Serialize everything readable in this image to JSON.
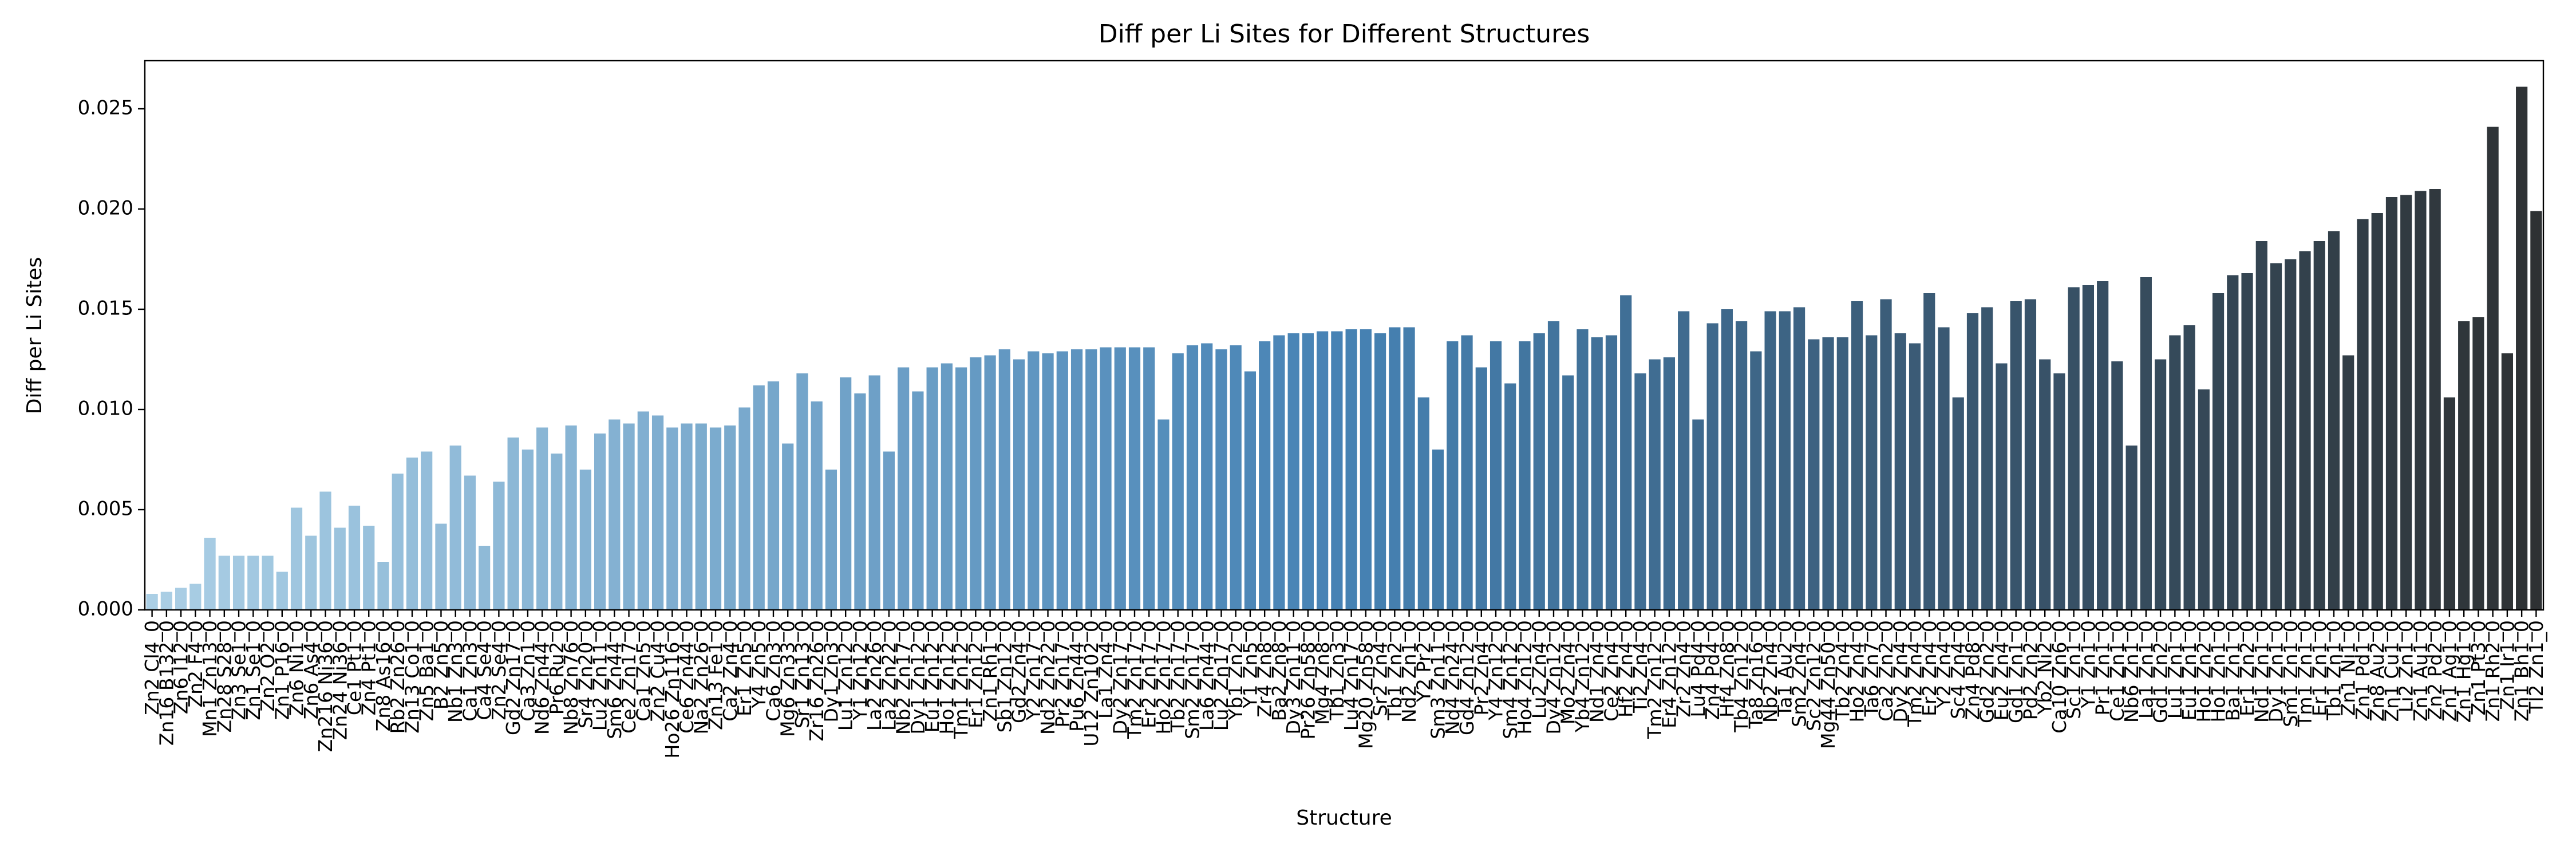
{
  "chart_data": {
    "type": "bar",
    "title": "Diff per Li Sites for Different Structures",
    "xlabel": "Structure",
    "ylabel": "Diff per Li Sites",
    "palette": [
      "#abcfe5",
      "#4682b4",
      "#2e3133"
    ],
    "ylim": [
      0,
      0.0274
    ],
    "yticks": [
      {
        "value": 0,
        "label": "0.000"
      },
      {
        "value": 0.005,
        "label": "0.005"
      },
      {
        "value": 0.01,
        "label": "0.010"
      },
      {
        "value": 0.015,
        "label": "0.015"
      },
      {
        "value": 0.02,
        "label": "0.020"
      },
      {
        "value": 0.025,
        "label": "0.025"
      }
    ],
    "categories": [
      "Zn2 Cl4_0",
      "Zn16 B132_0",
      "Zn6 I12_0",
      "Zn2 F4_0",
      "Mn1 Zn13_0",
      "Zn28 S28_0",
      "Zn3 Se1_0",
      "Zn1 Se1_0",
      "Zn2 O2_0",
      "Zn1 P16_0",
      "Zn6 Ni1_0",
      "Zn6 As4_0",
      "Zn216 Ni36_0",
      "Zn24 Ni36_0",
      "Ce1 Pt1_0",
      "Zn4 Pt1_0",
      "Zn8 As16_0",
      "Rb2 Zn26_0",
      "Zn13 Co1_0",
      "Zn5 Ba1_0",
      "B2 Zn5_0",
      "Nb1 Zn3_0",
      "Ca1 Zn3_0",
      "Ca4 Se4_0",
      "Zn2 Se4_0",
      "Gd2 Zn17_0",
      "Ca3 Zn1_0",
      "Nd6 Zn44_0",
      "Pr6 Ru2_0",
      "Nb8 Zn76_0",
      "Sr4 Zn20_0",
      "Lu2 Zn11_0",
      "Sm6 Zn44_0",
      "Ce2 Zn17_0",
      "Ca1 Zn5_0",
      "Zn2 Cu4_0",
      "Ho26 Zn116_0",
      "Ce6 Zn44_0",
      "Na2 Zn26_0",
      "Zn13 Fe1_0",
      "Ca2 Zn4_0",
      "Er1 Zn5_0",
      "Y4 Zn5_0",
      "Ca6 Zn3_0",
      "Mg6 Zn33_0",
      "Sr1 Zn13_0",
      "Zr16 Zn26_0",
      "Dy1 Zn3_0",
      "Lu1 Zn12_0",
      "Y1 Zn12_0",
      "La2 Zn26_0",
      "La2 Zn22_0",
      "Nb2 Zn17_0",
      "Dy1 Zn12_0",
      "Eu1 Zn12_0",
      "Ho1 Zn12_0",
      "Tm1 Zn12_0",
      "Er1 Zn12_0",
      "Zn1 Rh1_0",
      "Sb1 Zn12_0",
      "Gd2 Zn4_0",
      "Y2 Zn17_0",
      "Nd2 Zn22_0",
      "Pr2 Zn17_0",
      "Pu6 Zn44_0",
      "U12 Zn102_0",
      "La1 Zn4_0",
      "Dy2 Zn17_0",
      "Tm2 Zn17_0",
      "Er2 Zn17_0",
      "Ho2 Zn17_0",
      "Tb2 Zn17_0",
      "Sm2 Zn17_0",
      "La6 Zn44_0",
      "Lu2 Zn17_0",
      "Yb1 Zn2_0",
      "Y1 Zn5_0",
      "Zr4 Zn8_0",
      "Ba2 Zn8_0",
      "Dy3 Zn11_0",
      "Pr26 Zn58_0",
      "Mg4 Zn8_0",
      "Tb1 Zn3_0",
      "Lu4 Zn17_0",
      "Mg20 Zn58_0",
      "Sr2 Zn4_0",
      "Tb1 Zn2_0",
      "Nd2 Zn1_0",
      "Y2 Pr2_0",
      "Sm3 Zn11_0",
      "Nd4 Zn24_0",
      "Gd4 Zn12_0",
      "Pr2 Zn4_0",
      "Y4 Zn12_0",
      "Sm4 Zn12_0",
      "Ho4 Zn12_0",
      "Lu2 Zn4_0",
      "Dy4 Zn12_0",
      "Mo2 Zn4_0",
      "Yb4 Zn12_0",
      "Nd1 Zn4_0",
      "Ce2 Zn4_0",
      "Hf2 Zn4_0",
      "Ti2 Zn4_0",
      "Tm2 Zn12_0",
      "Er4 Zn12_0",
      "Zr2 Zn4_0",
      "Lu4 Pd4_0",
      "Zn4 Pd4_0",
      "Hf4 Zn8_0",
      "Tb4 Zn12_0",
      "Ta8 Zn16_0",
      "Nb2 Zn4_0",
      "Ta1 Au2_0",
      "Sm2 Zn4_0",
      "Sc2 Zn12_0",
      "Mg44 Zn50_0",
      "Tb2 Zn4_0",
      "Ho2 Zn4_0",
      "Ta6 Zn7_0",
      "Ca2 Zn2_0",
      "Dy2 Zn4_0",
      "Tm2 Zn4_0",
      "Er2 Zn4_0",
      "Y2 Zn4_0",
      "Sc4 Zn4_0",
      "Zn4 Pd8_0",
      "Gd2 Zn2_0",
      "Eu2 Zn4_0",
      "Gd1 Zn1_0",
      "Pd2 Zn2_0",
      "Yb2 Ni2_0",
      "Ca10 Zn6_0",
      "Sc1 Zn1_0",
      "Y1 Zn1_0",
      "Pr1 Zn1_0",
      "Ce1 Zn1_0",
      "Nb6 Zn1_0",
      "La1 Zn1_0",
      "Gd1 Zn2_0",
      "Lu1 Zn1_0",
      "Eu1 Zn1_0",
      "Ho1 Zn2_0",
      "Ho1 Zn1_0",
      "Ba1 Zn1_0",
      "Er1 Zn2_0",
      "Nd1 Zn1_0",
      "Dy1 Zn1_0",
      "Sm1 Zn1_0",
      "Tm1 Zn1_0",
      "Er1 Zn1_0",
      "Tb1 Zn1_0",
      "Zn1 Ni1_0",
      "Zn1 Pd1_0",
      "Zn8 Au2_0",
      "Zn1 Cu1_0",
      "Li2 Zn1_0",
      "Zn1 Au1_0",
      "Zn2 Pd2_0",
      "Zn1 Ag1_0",
      "Zn1 Hg1_0",
      "Zn1 Pt3_0",
      "Zn1 Rh2_0",
      "Zn1 Ir1_0",
      "Zn1 Bh1_0",
      "Tl2 Zn1_0"
    ],
    "values": [
      0.0008,
      0.0009,
      0.0011,
      0.0013,
      0.0036,
      0.0027,
      0.0027,
      0.0027,
      0.0027,
      0.0019,
      0.0051,
      0.0037,
      0.0059,
      0.0041,
      0.0052,
      0.0042,
      0.0024,
      0.0068,
      0.0076,
      0.0079,
      0.0043,
      0.0082,
      0.0067,
      0.0032,
      0.0064,
      0.0086,
      0.008,
      0.0091,
      0.0078,
      0.0092,
      0.007,
      0.0088,
      0.0095,
      0.0093,
      0.0099,
      0.0097,
      0.0091,
      0.0093,
      0.0093,
      0.0091,
      0.0092,
      0.0101,
      0.0112,
      0.0114,
      0.0083,
      0.0118,
      0.0104,
      0.007,
      0.0116,
      0.0108,
      0.0117,
      0.0079,
      0.0121,
      0.0109,
      0.0121,
      0.0123,
      0.0121,
      0.0126,
      0.0127,
      0.013,
      0.0125,
      0.0129,
      0.0128,
      0.0129,
      0.013,
      0.013,
      0.0131,
      0.0131,
      0.0131,
      0.0131,
      0.0095,
      0.0128,
      0.0132,
      0.0133,
      0.013,
      0.0132,
      0.0119,
      0.0134,
      0.0137,
      0.0138,
      0.0138,
      0.0139,
      0.0139,
      0.014,
      0.014,
      0.0138,
      0.0141,
      0.0141,
      0.0106,
      0.008,
      0.0134,
      0.0137,
      0.0121,
      0.0134,
      0.0113,
      0.0134,
      0.0138,
      0.0144,
      0.0117,
      0.014,
      0.0136,
      0.0137,
      0.0157,
      0.0118,
      0.0125,
      0.0126,
      0.0149,
      0.0095,
      0.0143,
      0.015,
      0.0144,
      0.0129,
      0.0149,
      0.0149,
      0.0151,
      0.0135,
      0.0136,
      0.0136,
      0.0154,
      0.0137,
      0.0155,
      0.0138,
      0.0133,
      0.0158,
      0.0141,
      0.0106,
      0.0148,
      0.0151,
      0.0123,
      0.0154,
      0.0155,
      0.0125,
      0.0118,
      0.0161,
      0.0162,
      0.0164,
      0.0124,
      0.0082,
      0.0166,
      0.0125,
      0.0137,
      0.0142,
      0.011,
      0.0158,
      0.0167,
      0.0168,
      0.0184,
      0.0173,
      0.0175,
      0.0179,
      0.0184,
      0.0189,
      0.0127,
      0.0195,
      0.0198,
      0.0206,
      0.0207,
      0.0209,
      0.021,
      0.0106,
      0.0144,
      0.0146,
      0.0241,
      0.0128,
      0.0261,
      0.0199
    ]
  }
}
